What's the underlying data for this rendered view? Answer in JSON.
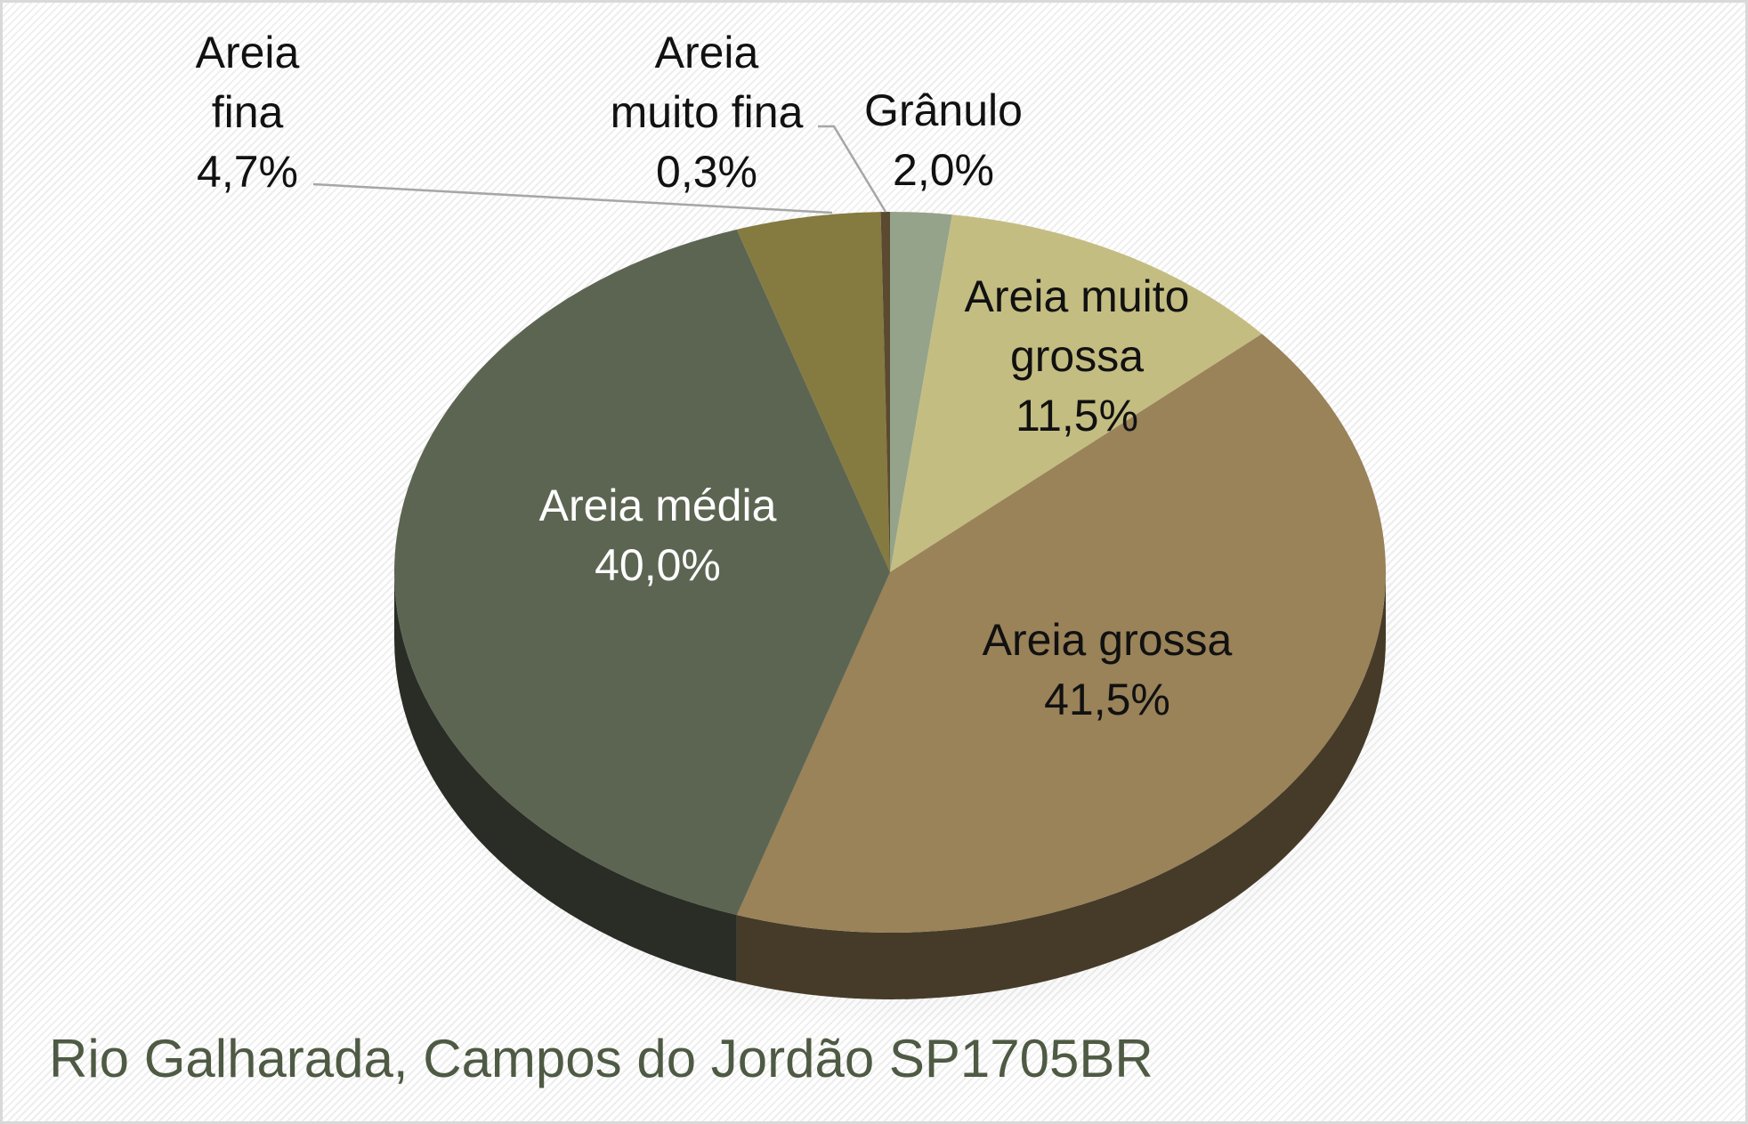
{
  "chart_data": {
    "type": "pie",
    "style": "3d",
    "title": "Rio Galharada, Campos do Jordão SP1705BR",
    "slices": [
      {
        "name": "Grânulo",
        "label_lines": [
          "Grânulo"
        ],
        "value": 2.0,
        "percent_text": "2,0%",
        "color": "#94a38a",
        "label_color": "#111111",
        "label_position": "outside"
      },
      {
        "name": "Areia muito grossa",
        "label_lines": [
          "Areia muito",
          "grossa"
        ],
        "value": 11.5,
        "percent_text": "11,5%",
        "color": "#c4bd82",
        "label_color": "#111111",
        "label_position": "inside"
      },
      {
        "name": "Areia grossa",
        "label_lines": [
          "Areia grossa"
        ],
        "value": 41.5,
        "percent_text": "41,5%",
        "color": "#9a8259",
        "label_color": "#111111",
        "label_position": "inside"
      },
      {
        "name": "Areia média",
        "label_lines": [
          "Areia média"
        ],
        "value": 40.0,
        "percent_text": "40,0%",
        "color": "#5c6552",
        "label_color": "#ffffff",
        "label_position": "inside"
      },
      {
        "name": "Areia fina",
        "label_lines": [
          "Areia",
          "fina"
        ],
        "value": 4.7,
        "percent_text": "4,7%",
        "color": "#857a40",
        "label_color": "#111111",
        "label_position": "outside"
      },
      {
        "name": "Areia muito fina",
        "label_lines": [
          "Areia",
          "muito fina"
        ],
        "value": 0.3,
        "percent_text": "0,3%",
        "color": "#5a4a30",
        "label_color": "#111111",
        "label_position": "outside"
      }
    ],
    "start_angle_deg": 0,
    "direction": "clockwise",
    "legend": "none",
    "colors": {
      "title": "#4e5a43",
      "leader_line": "#a6a6a6",
      "background": "#ffffff"
    }
  }
}
